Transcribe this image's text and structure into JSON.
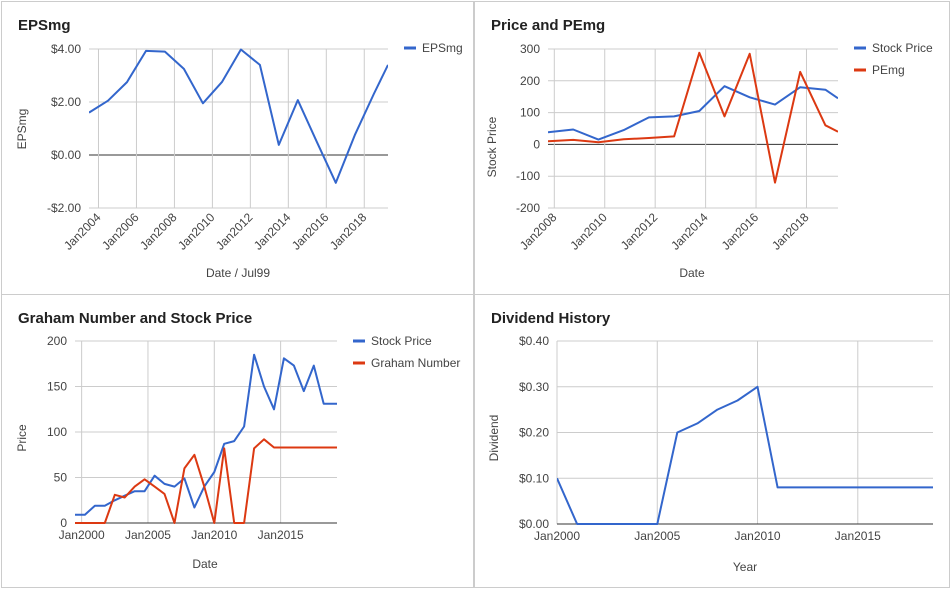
{
  "colors": {
    "blue": "#3366cc",
    "red": "#dc3912",
    "grid": "#cccccc",
    "zero": "#333333"
  },
  "chart_data": [
    {
      "type": "line",
      "title": "EPSmg",
      "xlabel": "Date / Jul99",
      "ylabel": "EPSmg",
      "xlim": [
        2003.5,
        2019.25
      ],
      "ylim": [
        -2,
        4
      ],
      "yticks": [
        -2,
        0,
        2,
        4
      ],
      "ytick_labels": [
        "-$2.00",
        "$0.00",
        "$2.00",
        "$4.00"
      ],
      "xticks": [
        2004,
        2006,
        2008,
        2010,
        2012,
        2014,
        2016,
        2018
      ],
      "xtick_labels": [
        "Jan2004",
        "Jan2006",
        "Jan2008",
        "Jan2010",
        "Jan2012",
        "Jan2014",
        "Jan2016",
        "Jan2018"
      ],
      "x_rotated": true,
      "zero_line": true,
      "legend_position": "right",
      "series": [
        {
          "name": "EPSmg",
          "color": "#3366cc",
          "x": [
            2003.5,
            2004.5,
            2005.5,
            2006.5,
            2007.5,
            2008.5,
            2009.5,
            2010.5,
            2011.5,
            2012.5,
            2013.5,
            2014.5,
            2015.5,
            2016.5,
            2017.5,
            2018.5,
            2019.25
          ],
          "y": [
            1.6,
            2.05,
            2.75,
            3.93,
            3.9,
            3.25,
            1.95,
            2.75,
            3.98,
            3.4,
            0.38,
            2.07,
            0.5,
            -1.05,
            0.75,
            2.3,
            3.4
          ]
        }
      ]
    },
    {
      "type": "line",
      "title": "Price and PEmg",
      "xlabel": "Date",
      "ylabel": "Stock Price",
      "xlim": [
        2007.75,
        2019.25
      ],
      "ylim": [
        -200,
        300
      ],
      "yticks": [
        -200,
        -100,
        0,
        100,
        200,
        300
      ],
      "ytick_labels": [
        "-200",
        "-100",
        "0",
        "100",
        "200",
        "300"
      ],
      "xticks": [
        2008,
        2010,
        2012,
        2014,
        2016,
        2018
      ],
      "xtick_labels": [
        "Jan2008",
        "Jan2010",
        "Jan2012",
        "Jan2014",
        "Jan2016",
        "Jan2018"
      ],
      "x_rotated": true,
      "zero_line": true,
      "legend_position": "right",
      "series": [
        {
          "name": "Stock Price",
          "color": "#3366cc",
          "x": [
            2007.75,
            2008.75,
            2009.75,
            2010.75,
            2011.75,
            2012.75,
            2013.75,
            2014.75,
            2015.75,
            2016.75,
            2017.75,
            2018.75,
            2019.25
          ],
          "y": [
            38,
            47,
            15,
            45,
            85,
            88,
            105,
            183,
            148,
            125,
            180,
            172,
            145
          ]
        },
        {
          "name": "PEmg",
          "color": "#dc3912",
          "x": [
            2007.75,
            2008.75,
            2009.75,
            2010.75,
            2011.75,
            2012.75,
            2013.75,
            2014.75,
            2015.75,
            2016.75,
            2017.75,
            2018.75,
            2019.25
          ],
          "y": [
            10,
            14,
            7,
            16,
            20,
            25,
            288,
            88,
            285,
            -120,
            228,
            60,
            40
          ]
        }
      ]
    },
    {
      "type": "line",
      "title": "Graham Number and Stock Price",
      "xlabel": "Date",
      "ylabel": "Price",
      "xlim": [
        1999.5,
        2019.25
      ],
      "ylim": [
        0,
        200
      ],
      "yticks": [
        0,
        50,
        100,
        150,
        200
      ],
      "ytick_labels": [
        "0",
        "50",
        "100",
        "150",
        "200"
      ],
      "xticks": [
        2000,
        2005,
        2010,
        2015
      ],
      "xtick_labels": [
        "Jan2000",
        "Jan2005",
        "Jan2010",
        "Jan2015"
      ],
      "x_rotated": false,
      "zero_line": false,
      "legend_position": "right",
      "series": [
        {
          "name": "Stock Price",
          "color": "#3366cc",
          "x": [
            1999.5,
            2000.25,
            2001,
            2001.75,
            2002.5,
            2003.25,
            2004,
            2004.75,
            2005.5,
            2006.25,
            2007,
            2007.75,
            2008.5,
            2009.25,
            2010,
            2010.75,
            2011.5,
            2012.25,
            2013,
            2013.75,
            2014.5,
            2015.25,
            2016,
            2016.75,
            2017.5,
            2018.25,
            2019.25
          ],
          "y": [
            9,
            9,
            19,
            19,
            25,
            30,
            35,
            35,
            52,
            43,
            40,
            49,
            17,
            40,
            56,
            87,
            90,
            106,
            185,
            150,
            125,
            181,
            173,
            145,
            173,
            131,
            131
          ]
        },
        {
          "name": "Graham Number",
          "color": "#dc3912",
          "x": [
            1999.5,
            2000.25,
            2001,
            2001.75,
            2002.5,
            2003.25,
            2004,
            2004.75,
            2005.5,
            2006.25,
            2007,
            2007.75,
            2008.5,
            2009.25,
            2010,
            2010.75,
            2011.5,
            2012.25,
            2013,
            2013.75,
            2014.5,
            2015.25,
            2016,
            2016.75,
            2017.5,
            2018.25,
            2019.25
          ],
          "y": [
            0,
            0,
            0,
            0,
            31,
            28,
            40,
            48,
            40,
            32,
            0,
            60,
            75,
            40,
            0,
            82,
            0,
            0,
            82,
            92,
            83,
            83,
            83,
            83,
            83,
            83,
            83
          ]
        }
      ]
    },
    {
      "type": "line",
      "title": "Dividend History",
      "xlabel": "Year",
      "ylabel": "Dividend",
      "xlim": [
        2000,
        2018.75
      ],
      "ylim": [
        0,
        0.4
      ],
      "yticks": [
        0,
        0.1,
        0.2,
        0.3,
        0.4
      ],
      "ytick_labels": [
        "$0.00",
        "$0.10",
        "$0.20",
        "$0.30",
        "$0.40"
      ],
      "xticks": [
        2000,
        2005,
        2010,
        2015
      ],
      "xtick_labels": [
        "Jan2000",
        "Jan2005",
        "Jan2010",
        "Jan2015"
      ],
      "x_rotated": false,
      "zero_line": false,
      "legend_position": "none",
      "series": [
        {
          "name": "",
          "color": "#3366cc",
          "x": [
            2000,
            2001,
            2002,
            2003,
            2004,
            2005,
            2006,
            2007,
            2008,
            2009,
            2010,
            2011,
            2012,
            2013,
            2014,
            2015,
            2016,
            2017,
            2018,
            2018.75
          ],
          "y": [
            0.1,
            0,
            0,
            0,
            0,
            0,
            0.2,
            0.22,
            0.25,
            0.27,
            0.3,
            0.08,
            0.08,
            0.08,
            0.08,
            0.08,
            0.08,
            0.08,
            0.08,
            0.08
          ]
        }
      ]
    }
  ]
}
